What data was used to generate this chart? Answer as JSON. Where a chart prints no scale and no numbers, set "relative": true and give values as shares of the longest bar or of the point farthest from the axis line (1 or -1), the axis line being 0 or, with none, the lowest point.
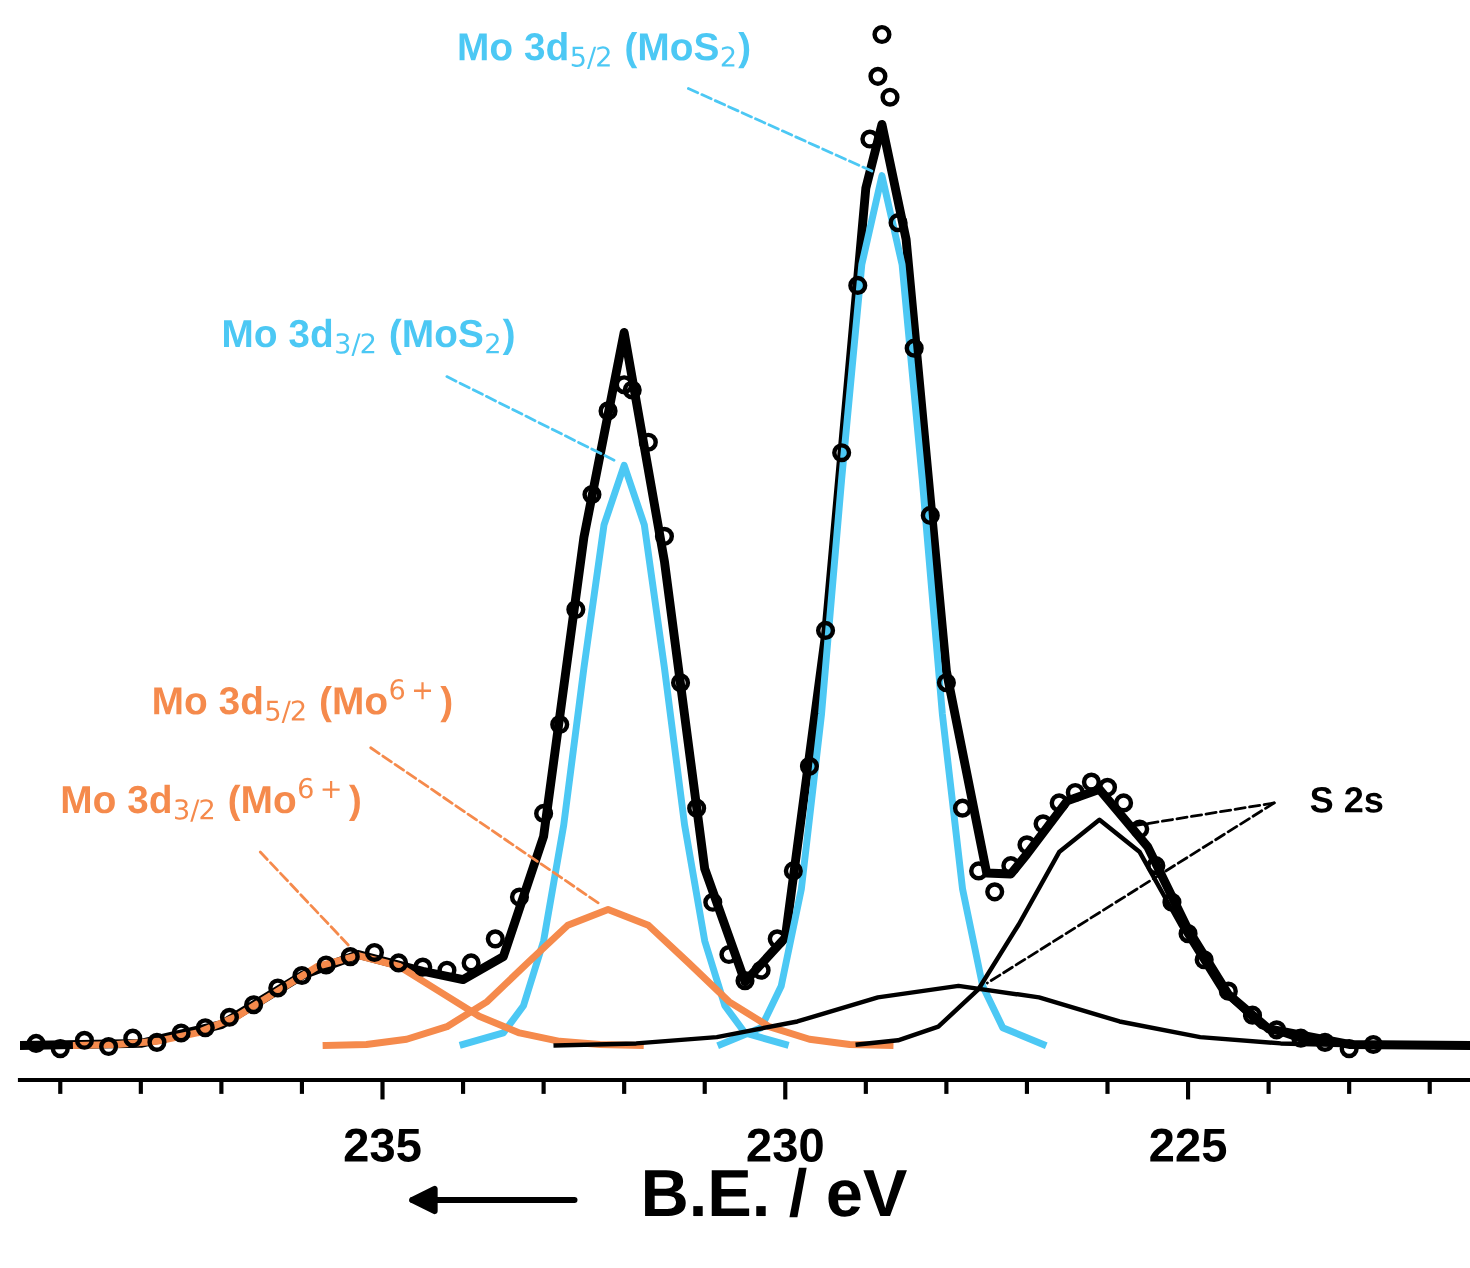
{
  "chart_data": {
    "type": "line",
    "relative": true,
    "xlabel": "B.E. / eV",
    "xlim": [
      239.5,
      221.5
    ],
    "xticks": [
      {
        "value": 239,
        "label": null
      },
      {
        "value": 238,
        "label": null
      },
      {
        "value": 237,
        "label": null
      },
      {
        "value": 236,
        "label": null
      },
      235,
      {
        "value": 234,
        "label": null
      },
      {
        "value": 233,
        "label": null
      },
      {
        "value": 232,
        "label": null
      },
      {
        "value": 231,
        "label": null
      },
      230,
      {
        "value": 229,
        "label": null
      },
      {
        "value": 228,
        "label": null
      },
      {
        "value": 227,
        "label": null
      },
      {
        "value": 226,
        "label": null
      },
      225,
      {
        "value": 224,
        "label": null
      },
      {
        "value": 223,
        "label": null
      },
      {
        "value": 222,
        "label": null
      }
    ],
    "grid": false,
    "legend": false,
    "series": [
      {
        "type": "scatter",
        "marker": "circle",
        "color": "#000000",
        "x": [
          239.3,
          239.0,
          238.7,
          238.4,
          238.1,
          237.8,
          237.5,
          237.2,
          236.9,
          236.6,
          236.3,
          236.0,
          235.7,
          235.4,
          235.1,
          234.8,
          234.5,
          234.2,
          233.9,
          233.6,
          233.3,
          233.0,
          232.8,
          232.6,
          232.4,
          232.2,
          232.0,
          231.9,
          231.7,
          231.5,
          231.3,
          231.1,
          230.9,
          230.7,
          230.5,
          230.3,
          230.1,
          229.9,
          229.7,
          229.5,
          229.3,
          229.1,
          228.95,
          228.85,
          228.8,
          228.7,
          228.6,
          228.4,
          228.2,
          228.0,
          227.8,
          227.6,
          227.4,
          227.2,
          227.0,
          226.8,
          226.6,
          226.4,
          226.2,
          226.0,
          225.8,
          225.6,
          225.4,
          225.2,
          225.0,
          224.8,
          224.5,
          224.2,
          223.9,
          223.6,
          223.3,
          223.0,
          222.7
        ],
        "values": [
          0.035,
          0.03,
          0.038,
          0.032,
          0.04,
          0.036,
          0.045,
          0.05,
          0.06,
          0.072,
          0.088,
          0.1,
          0.11,
          0.118,
          0.122,
          0.112,
          0.108,
          0.105,
          0.112,
          0.135,
          0.175,
          0.255,
          0.34,
          0.45,
          0.56,
          0.64,
          0.665,
          0.66,
          0.61,
          0.52,
          0.38,
          0.26,
          0.17,
          0.12,
          0.095,
          0.105,
          0.135,
          0.2,
          0.3,
          0.43,
          0.6,
          0.76,
          0.9,
          0.96,
          1.0,
          0.94,
          0.82,
          0.7,
          0.54,
          0.38,
          0.26,
          0.2,
          0.18,
          0.205,
          0.225,
          0.245,
          0.265,
          0.275,
          0.285,
          0.28,
          0.265,
          0.24,
          0.205,
          0.17,
          0.14,
          0.115,
          0.085,
          0.062,
          0.048,
          0.04,
          0.036,
          0.03,
          0.034
        ]
      },
      {
        "color": "#000000",
        "x": [
          239.5,
          238,
          237,
          236,
          235.3,
          234.5,
          234,
          233.5,
          233,
          232.5,
          232,
          231.5,
          231,
          230.5,
          230,
          229.5,
          229,
          228.8,
          228.5,
          228,
          227.5,
          227.2,
          227,
          226.5,
          226.1,
          225.5,
          225,
          224.5,
          224,
          223,
          221.5
        ],
        "values": [
          0.033,
          0.035,
          0.053,
          0.1,
          0.12,
          0.104,
          0.096,
          0.118,
          0.233,
          0.519,
          0.715,
          0.496,
          0.202,
          0.094,
          0.136,
          0.426,
          0.853,
          0.914,
          0.804,
          0.391,
          0.198,
          0.197,
          0.216,
          0.267,
          0.278,
          0.223,
          0.144,
          0.082,
          0.049,
          0.034,
          0.033
        ]
      },
      {
        "name": "Mo 3d$_{5/2}$ (MoS$_{2}$)",
        "color": "#4cc8f4",
        "x": [
          230.8,
          230.3,
          230.05,
          229.8,
          229.55,
          229.3,
          229.05,
          228.8,
          228.55,
          228.3,
          228.05,
          227.8,
          227.55,
          227.3,
          226.8
        ],
        "values": [
          0.034,
          0.05,
          0.09,
          0.183,
          0.35,
          0.575,
          0.78,
          0.865,
          0.78,
          0.575,
          0.35,
          0.183,
          0.09,
          0.05,
          0.034
        ]
      },
      {
        "name": "Mo 3d$_{3/2}$ (MoS$_{2}$)",
        "color": "#4cc8f4",
        "x": [
          234.0,
          233.5,
          233.25,
          233.0,
          232.75,
          232.5,
          232.25,
          232.0,
          231.75,
          231.5,
          231.25,
          231.0,
          230.75,
          230.5,
          230.0
        ],
        "values": [
          0.034,
          0.045,
          0.071,
          0.133,
          0.244,
          0.394,
          0.531,
          0.588,
          0.531,
          0.394,
          0.244,
          0.133,
          0.071,
          0.045,
          0.034
        ]
      },
      {
        "name": "Mo 3d$_{5/2}$ (Mo$^{6+}$)",
        "color": "#f58a4c",
        "x": [
          235.7,
          235.2,
          234.7,
          234.2,
          233.7,
          233.2,
          232.7,
          232.2,
          231.7,
          231.2,
          230.7,
          230.2,
          229.7,
          229.2,
          228.7
        ],
        "values": [
          0.033,
          0.034,
          0.039,
          0.051,
          0.075,
          0.112,
          0.148,
          0.163,
          0.148,
          0.112,
          0.075,
          0.051,
          0.039,
          0.034,
          0.033
        ]
      },
      {
        "name": "Mo 3d$_{3/2}$ (Mo$^{6+}$)",
        "color": "#f58a4c",
        "x": [
          238.8,
          238.3,
          237.8,
          237.3,
          236.8,
          236.3,
          235.8,
          235.3,
          234.8,
          234.3,
          233.8,
          233.3,
          232.8,
          232.3,
          231.8
        ],
        "values": [
          0.033,
          0.034,
          0.037,
          0.045,
          0.061,
          0.085,
          0.109,
          0.119,
          0.109,
          0.085,
          0.061,
          0.045,
          0.037,
          0.034,
          0.033
        ]
      },
      {
        "color": "#000000",
        "x": [
          229.1,
          228.6,
          228.1,
          227.6,
          227.1,
          226.6,
          226.1,
          225.6,
          225.1,
          224.6,
          224.1,
          223.6,
          223.1
        ],
        "values": [
          0.034,
          0.038,
          0.051,
          0.087,
          0.149,
          0.218,
          0.249,
          0.218,
          0.149,
          0.087,
          0.051,
          0.038,
          0.034
        ]
      },
      {
        "color": "#000000",
        "x": [
          232.85,
          231.85,
          230.85,
          229.85,
          228.85,
          227.85,
          226.85,
          225.85,
          224.85,
          223.85,
          222.85
        ],
        "values": [
          0.033,
          0.035,
          0.041,
          0.056,
          0.079,
          0.09,
          0.079,
          0.056,
          0.041,
          0.035,
          0.033
        ]
      }
    ],
    "annotations": [
      "S 2s"
    ]
  }
}
